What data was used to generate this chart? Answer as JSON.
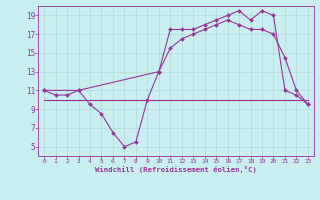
{
  "bg_color": "#c8eef0",
  "grid_color": "#b0d8da",
  "line_color": "#993399",
  "xlim": [
    -0.5,
    23.5
  ],
  "ylim": [
    4,
    20
  ],
  "xticks": [
    0,
    1,
    2,
    3,
    4,
    5,
    6,
    7,
    8,
    9,
    10,
    11,
    12,
    13,
    14,
    15,
    16,
    17,
    18,
    19,
    20,
    21,
    22,
    23
  ],
  "yticks": [
    5,
    7,
    9,
    11,
    13,
    15,
    17,
    19
  ],
  "xlabel": "Windchill (Refroidissement éolien,°C)",
  "series1_x": [
    0,
    1,
    2,
    3,
    4,
    5,
    6,
    7,
    8,
    9,
    10,
    11,
    12,
    13,
    14,
    15,
    16,
    17,
    18,
    19,
    20,
    21,
    22,
    23
  ],
  "series1_y": [
    11,
    10.5,
    10.5,
    11,
    9.5,
    8.5,
    6.5,
    5,
    5.5,
    10,
    13,
    17.5,
    17.5,
    17.5,
    18,
    18.5,
    19,
    19.5,
    18.5,
    19.5,
    19,
    11,
    10.5,
    9.5
  ],
  "series2_x": [
    0,
    3,
    10,
    11,
    12,
    13,
    14,
    15,
    16,
    17,
    18,
    19,
    20,
    21,
    22,
    23
  ],
  "series2_y": [
    11,
    11,
    13,
    15.5,
    16.5,
    17,
    17.5,
    18,
    18.5,
    18,
    17.5,
    17.5,
    17,
    14.5,
    11,
    9.5
  ],
  "series3_x": [
    0,
    3,
    10,
    23
  ],
  "series3_y": [
    10,
    10,
    10,
    10
  ],
  "marker": "D",
  "markersize": 2.0,
  "linewidth": 0.8
}
